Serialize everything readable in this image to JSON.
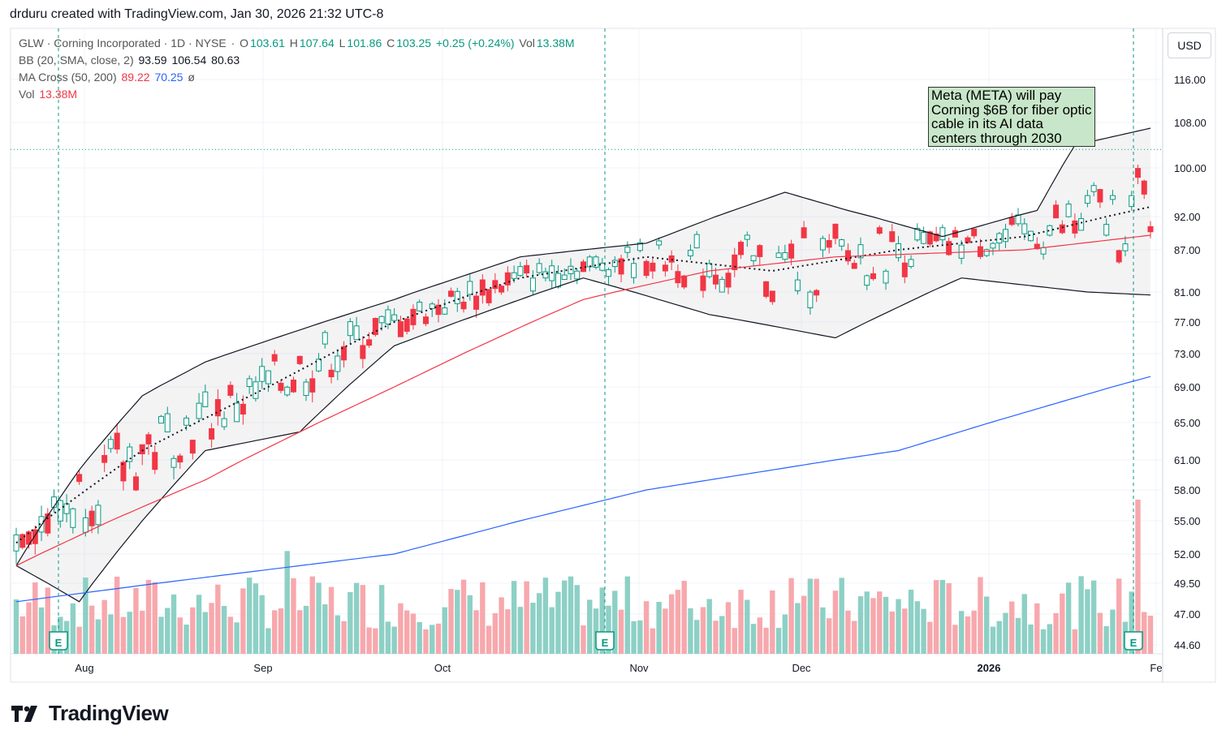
{
  "header": {
    "attribution": "drduru created with TradingView.com, Jan 30, 2026 21:32 UTC-8"
  },
  "legend": {
    "symbol": "GLW · Corning Incorporated · 1D · NYSE",
    "o_label": "O",
    "o_val": "103.61",
    "h_label": "H",
    "h_val": "107.64",
    "l_label": "L",
    "l_val": "101.86",
    "c_label": "C",
    "c_val": "103.25",
    "chg": "+0.25 (+0.24%)",
    "vol_label": "Vol",
    "vol_val": "13.38M",
    "bb_label": "BB (20, SMA, close, 2)",
    "bb_mid": "93.59",
    "bb_up": "106.54",
    "bb_low": "80.63",
    "ma_label": "MA Cross (50, 200)",
    "ma50": "89.22",
    "ma200": "70.25",
    "ma_sym": "ø",
    "vol2_label": "Vol",
    "vol2_val": "13.38M"
  },
  "currency": "USD",
  "annotation": "Meta (META) will pay Corning $6B for fiber optic cable in its AI data centers through 2030",
  "brand": "TradingView",
  "colors": {
    "up": "#089981",
    "down": "#f23645",
    "upVol": "#8dd0c5",
    "downVol": "#f7a8ad",
    "ma50": "#f23645",
    "ma200": "#2962ff",
    "bb": "#131722"
  },
  "chart_data": {
    "type": "candlestick",
    "title": "GLW · Corning Incorporated · 1D · NYSE",
    "price_ticks": [
      "116.00",
      "108.00",
      "100.00",
      "92.00",
      "87.00",
      "81.00",
      "77.00",
      "73.00",
      "69.00",
      "65.00",
      "61.00",
      "58.00",
      "55.00",
      "52.00",
      "49.50",
      "47.00",
      "44.60"
    ],
    "last_price": 103.25,
    "x_labels": [
      "Aug",
      "Sep",
      "Oct",
      "Nov",
      "Dec",
      "2026",
      "Fe"
    ],
    "earnings_label": "E",
    "earnings_dates": [
      "Jul 29",
      "Oct 28",
      "Jan 28"
    ],
    "series": [
      {
        "name": "BB upper",
        "approx_points": [
          [
            0,
            51
          ],
          [
            10,
            60
          ],
          [
            20,
            68
          ],
          [
            30,
            72
          ],
          [
            60,
            80
          ],
          [
            80,
            86
          ],
          [
            100,
            88
          ],
          [
            122,
            96
          ],
          [
            132,
            93
          ],
          [
            147,
            89
          ],
          [
            162,
            93
          ],
          [
            168,
            104
          ],
          [
            180,
            107
          ]
        ]
      },
      {
        "name": "BB basis (20 SMA)",
        "approx_points": [
          [
            0,
            53
          ],
          [
            20,
            62
          ],
          [
            40,
            69
          ],
          [
            60,
            77
          ],
          [
            80,
            83
          ],
          [
            100,
            86
          ],
          [
            120,
            84
          ],
          [
            140,
            87
          ],
          [
            160,
            89
          ],
          [
            180,
            93.6
          ]
        ]
      },
      {
        "name": "MA 50",
        "approx_points": [
          [
            0,
            51
          ],
          [
            30,
            59
          ],
          [
            60,
            69
          ],
          [
            90,
            80
          ],
          [
            110,
            84
          ],
          [
            130,
            86
          ],
          [
            160,
            87
          ],
          [
            180,
            89.2
          ]
        ]
      },
      {
        "name": "MA 200",
        "approx_points": [
          [
            0,
            48
          ],
          [
            60,
            52
          ],
          [
            100,
            58
          ],
          [
            140,
            62
          ],
          [
            180,
            70.25
          ]
        ]
      },
      {
        "name": "BB lower",
        "approx_points": [
          [
            0,
            51
          ],
          [
            10,
            48
          ],
          [
            20,
            55
          ],
          [
            30,
            62
          ],
          [
            45,
            64
          ],
          [
            60,
            74
          ],
          [
            90,
            83
          ],
          [
            110,
            78
          ],
          [
            130,
            75
          ],
          [
            150,
            83
          ],
          [
            170,
            81
          ],
          [
            180,
            80.6
          ]
        ]
      }
    ]
  }
}
